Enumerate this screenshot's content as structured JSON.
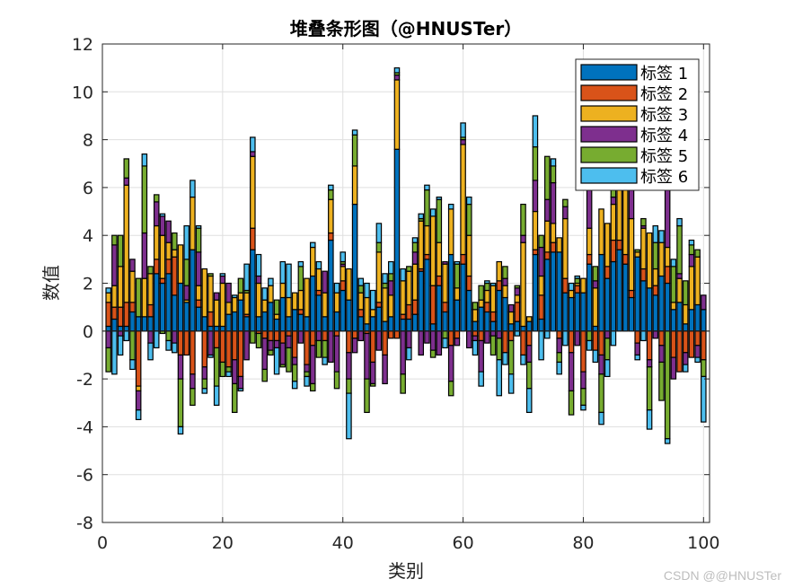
{
  "chart_data": {
    "type": "bar",
    "stacked": true,
    "title": "堆叠条形图（@HNUSTer）",
    "xlabel": "类别",
    "ylabel": "数值",
    "xlim": [
      0,
      101
    ],
    "ylim": [
      -8,
      12
    ],
    "xticks": [
      0,
      20,
      40,
      60,
      80,
      100
    ],
    "yticks": [
      -8,
      -6,
      -4,
      -2,
      0,
      2,
      4,
      6,
      8,
      10,
      12
    ],
    "grid": true,
    "legend_position": "northeast",
    "categories_count": 100,
    "series": [
      {
        "name": "标签 1",
        "color": "#0072BD"
      },
      {
        "name": "标签 2",
        "color": "#D95319"
      },
      {
        "name": "标签 3",
        "color": "#EDB120"
      },
      {
        "name": "标签 4",
        "color": "#7E2F8E"
      },
      {
        "name": "标签 5",
        "color": "#77AC30"
      },
      {
        "name": "标签 6",
        "color": "#4DBEEE"
      }
    ],
    "values": [
      [
        0.2,
        1.0,
        0.4,
        -0.7,
        -1.0,
        0.2
      ],
      [
        0.5,
        0.5,
        0.9,
        1.7,
        0.4,
        -1.8
      ],
      [
        0.2,
        0.8,
        1.7,
        -0.2,
        1.3,
        -0.8
      ],
      [
        0.2,
        1.0,
        4.9,
        0.3,
        0.8,
        -0.4
      ],
      [
        0.8,
        0.4,
        1.3,
        0.5,
        -1.2,
        -0.4
      ],
      [
        0.6,
        -2.3,
        -0.2,
        -0.8,
        1.6,
        -0.4
      ],
      [
        0.6,
        0,
        1.6,
        1.9,
        2.8,
        0.5
      ],
      [
        0.6,
        0.5,
        1.3,
        -0.5,
        0.3,
        -0.7
      ],
      [
        2.4,
        0.6,
        1.4,
        1.0,
        0.3,
        -0.7
      ],
      [
        2.0,
        0.2,
        1.8,
        0.8,
        -0.1,
        0.1
      ],
      [
        2.4,
        0.6,
        0.7,
        0.9,
        -0.4,
        -0.4
      ],
      [
        1.5,
        1.6,
        0.3,
        -0.5,
        0.7,
        -0.4
      ],
      [
        2.0,
        -1.0,
        1.6,
        -1.0,
        -2.0,
        -0.3
      ],
      [
        1.2,
        -1.0,
        0.1,
        0.6,
        1.1,
        1.4
      ],
      [
        3.4,
        -1.8,
        2.2,
        -0.6,
        -0.7,
        0.7
      ],
      [
        1.0,
        0.3,
        0.6,
        1.4,
        1.0,
        0.1
      ],
      [
        0.6,
        -1.5,
        2.0,
        -0.5,
        -0.4,
        -0.2
      ],
      [
        0.2,
        0.6,
        1.5,
        -1.0,
        0.1,
        -0.1
      ],
      [
        0.2,
        -0.7,
        1.1,
        0.3,
        -1.6,
        -0.8
      ],
      [
        0.2,
        -1.3,
        1.8,
        0.3,
        -0.6,
        0.1
      ],
      [
        0.7,
        -1.5,
        0.5,
        0.8,
        -0.2,
        -0.2
      ],
      [
        0.8,
        -1.2,
        0.6,
        -1.0,
        -1.2,
        0.1
      ],
      [
        1.3,
        -1.9,
        0.3,
        -0.5,
        0.6,
        -0.1
      ],
      [
        0.6,
        0.1,
        0.9,
        -1.2,
        0.1,
        1.1
      ],
      [
        3.4,
        0.9,
        3.0,
        0.2,
        -0.5,
        0.6
      ],
      [
        0.6,
        -0.1,
        1.4,
        0.3,
        -0.6,
        0.9
      ],
      [
        0.8,
        -0.3,
        0.5,
        -1.3,
        -0.5,
        0.5
      ],
      [
        1.2,
        -0.4,
        0.7,
        -0.4,
        -0.2,
        0.3
      ],
      [
        0.5,
        -0.4,
        0.2,
        -0.3,
        0.6,
        -1.1
      ],
      [
        1.4,
        -0.5,
        0.6,
        -0.9,
        -0.1,
        0.9
      ],
      [
        0.6,
        -0.2,
        0.8,
        -0.5,
        -1.0,
        1.4
      ],
      [
        0.9,
        -1.1,
        0.7,
        -0.3,
        -0.7,
        -0.3
      ],
      [
        0.7,
        0.2,
        0.8,
        -0.5,
        1.0,
        0.2
      ],
      [
        0.6,
        -1.4,
        1.6,
        -0.3,
        -0.2,
        -0.4
      ],
      [
        2.3,
        -0.6,
        1.2,
        -1.6,
        -0.3,
        0.2
      ],
      [
        1.5,
        0.2,
        0.9,
        -0.4,
        -0.7,
        0.3
      ],
      [
        0.6,
        -0.4,
        1.0,
        0.9,
        -0.7,
        -0.3
      ],
      [
        3.8,
        0.3,
        1.4,
        -1.3,
        0.4,
        0.2
      ],
      [
        0.8,
        -0.2,
        0.8,
        -1.5,
        -0.7,
        0.4
      ],
      [
        1.7,
        0.4,
        0.6,
        0.1,
        0.1,
        0.4
      ],
      [
        1.3,
        -0.9,
        1.3,
        -1.1,
        -0.6,
        -1.9
      ],
      [
        5.3,
        -0.3,
        1.6,
        -0.6,
        1.3,
        0.2
      ],
      [
        0.6,
        0.3,
        0.7,
        -0.4,
        0.3,
        0.3
      ],
      [
        0.3,
        -0.1,
        1.1,
        -1.9,
        -1.4,
        0.6
      ],
      [
        0.6,
        -1.3,
        0.3,
        -0.9,
        -0.1,
        0.8
      ],
      [
        1.0,
        0.2,
        2.1,
        -0.8,
        0.4,
        0.8
      ],
      [
        0.4,
        -1.0,
        1.4,
        -1.2,
        0.2,
        0.4
      ],
      [
        0.6,
        -0.3,
        0.9,
        0.6,
        0.3,
        0.5
      ],
      [
        7.6,
        -0.3,
        2.9,
        0.2,
        0.1,
        0.2
      ],
      [
        0.5,
        0.2,
        1.4,
        -1.8,
        -0.8,
        0.5
      ],
      [
        0.5,
        0.6,
        1.4,
        -0.7,
        0.2,
        -0.5
      ],
      [
        0.7,
        0.6,
        1.5,
        0.5,
        0.4,
        0.2
      ],
      [
        2.5,
        0.1,
        2.0,
        -1.0,
        0.1,
        0.2
      ],
      [
        3.0,
        0.2,
        1.2,
        -0.5,
        1.5,
        0.2
      ],
      [
        0.3,
        1.6,
        2.9,
        -0.8,
        -0.3,
        0.3
      ],
      [
        1.9,
        0.4,
        1.4,
        -1.0,
        1.8,
        0.1
      ],
      [
        0.8,
        0.4,
        1.6,
        0.1,
        -0.3,
        -0.4
      ],
      [
        3.2,
        -0.6,
        1.9,
        -1.5,
        -0.6,
        0.2
      ],
      [
        1.3,
        -0.3,
        0.5,
        -0.3,
        1.0,
        0.1
      ],
      [
        2.8,
        0.4,
        4.6,
        0.2,
        0.1,
        0.6
      ],
      [
        1.7,
        0.6,
        1.7,
        -0.7,
        1.3,
        0.3
      ],
      [
        0.4,
        -0.2,
        0.5,
        -0.2,
        0.3,
        -0.6
      ],
      [
        1.0,
        -0.4,
        0.3,
        -1.3,
        0.6,
        -0.6
      ],
      [
        0.8,
        0.4,
        0.5,
        -0.5,
        0.3,
        0.1
      ],
      [
        0.4,
        0.4,
        1.1,
        -0.2,
        -0.8,
        0.1
      ],
      [
        1.7,
        0.4,
        0.8,
        -0.3,
        -0.9,
        -1.5
      ],
      [
        1.4,
        -0.9,
        0.5,
        0.3,
        0.5,
        -0.5
      ],
      [
        0.3,
        -0.4,
        0.5,
        0.3,
        -1.4,
        -0.8
      ],
      [
        0.4,
        0.8,
        0.3,
        0.3,
        0.1,
        -0.2
      ],
      [
        0.2,
        -1.0,
        3.5,
        0.3,
        1.3,
        -0.4
      ],
      [
        0.4,
        -0.6,
        0.2,
        -0.7,
        -1.1,
        -1.0
      ],
      [
        3.2,
        0.2,
        1.6,
        1.3,
        1.4,
        1.3
      ],
      [
        0.5,
        1.0,
        0.8,
        1.2,
        0.5,
        -1.2
      ],
      [
        3.0,
        0.3,
        1.3,
        0.9,
        1.8,
        -0.3
      ],
      [
        3.3,
        0.4,
        0.8,
        1.7,
        0.7,
        0.3
      ],
      [
        3.3,
        -0.3,
        0.6,
        -0.6,
        -0.4,
        -0.5
      ],
      [
        1.6,
        0.6,
        2.5,
        0.5,
        0.3,
        -0.6
      ],
      [
        1.4,
        -0.9,
        0.3,
        -1.6,
        -1.0,
        0.3
      ],
      [
        1.6,
        0.3,
        0.1,
        -0.6,
        0.2,
        0.1
      ],
      [
        1.6,
        -1.7,
        0.6,
        -0.7,
        -0.7,
        -0.2
      ],
      [
        2.8,
        0.4,
        1.1,
        3.2,
        -0.4,
        -0.4
      ],
      [
        0.2,
        -0.8,
        1.6,
        0.3,
        0.6,
        -0.5
      ],
      [
        3.2,
        -1.0,
        1.9,
        -0.8,
        -1.6,
        -0.5
      ],
      [
        2.2,
        0.5,
        1.8,
        -0.3,
        -0.9,
        -0.7
      ],
      [
        2.9,
        0.9,
        1.5,
        0.3,
        0.4,
        -0.6
      ],
      [
        3.4,
        0.4,
        2.9,
        0.5,
        0.2,
        0.4
      ],
      [
        2.8,
        0.4,
        2.9,
        0.9,
        0.2,
        0.3
      ],
      [
        1.4,
        0.3,
        3.0,
        1.2,
        3.5,
        0.2
      ],
      [
        3.1,
        -0.5,
        0.2,
        -0.5,
        0.1,
        -0.2
      ],
      [
        2.1,
        0.5,
        1.7,
        0.1,
        0.3,
        -0.4
      ],
      [
        1.8,
        -1.2,
        2.3,
        -0.3,
        -1.8,
        -0.8
      ],
      [
        1.5,
        0.4,
        0.7,
        -0.3,
        1.1,
        0.7
      ],
      [
        2.3,
        -0.6,
        1.4,
        -0.7,
        -1.6,
        0.5
      ],
      [
        2.0,
        0.7,
        0.8,
        3.0,
        -4.5,
        -0.2
      ],
      [
        0.9,
        -1.1,
        0.3,
        -0.9,
        1.5,
        0.3
      ],
      [
        1.2,
        -1.7,
        1.0,
        0.2,
        2.0,
        0.3
      ],
      [
        0.3,
        -0.9,
        0.8,
        -0.5,
        1.0,
        -0.3
      ],
      [
        0.9,
        -1.1,
        1.8,
        0.5,
        0.4,
        0.2
      ],
      [
        1.1,
        -0.6,
        2.0,
        -0.5,
        0.3,
        -0.2
      ],
      [
        0.9,
        -1.2,
        0,
        0.6,
        -0.7,
        -1.9
      ]
    ]
  },
  "watermark": "CSDN @@HNUSTer"
}
